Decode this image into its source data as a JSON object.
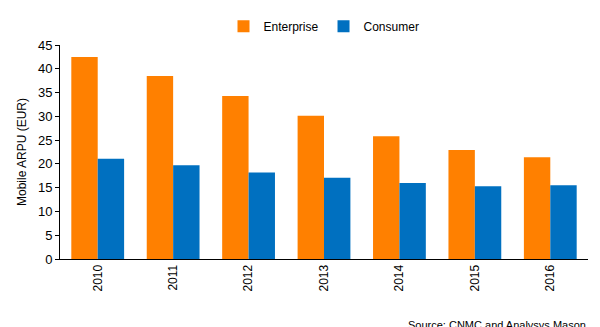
{
  "chart_data": {
    "type": "bar",
    "y_label": "Mobile ARPU (EUR)",
    "categories": [
      "2010",
      "2011",
      "2012",
      "2013",
      "2014",
      "2015",
      "2016"
    ],
    "series": [
      {
        "name": "Enterprise",
        "color": "#ff8000",
        "values": [
          42.5,
          38.5,
          34.3,
          30.1,
          25.8,
          22.9,
          21.4
        ]
      },
      {
        "name": "Consumer",
        "color": "#0070c0",
        "values": [
          21.1,
          19.7,
          18.2,
          17.1,
          16.0,
          15.3,
          15.5
        ]
      }
    ],
    "ylim": [
      0,
      45
    ],
    "yticks": [
      0,
      5,
      10,
      15,
      20,
      25,
      30,
      35,
      40,
      45
    ],
    "grid": false,
    "legend": "top",
    "annotations": [
      "Source: CNMC and Analysys Mason"
    ]
  }
}
